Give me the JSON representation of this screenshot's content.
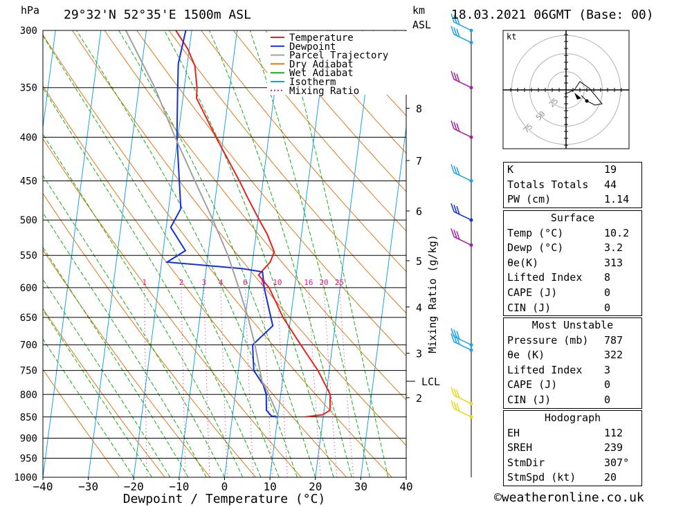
{
  "header": {
    "pressure_unit": "hPa",
    "location": "29°32'N  52°35'E  1500m  ASL",
    "height_unit_line1": "km",
    "height_unit_line2": "ASL",
    "datetime": "18.03.2021  06GMT  (Base: 00)"
  },
  "chart_data": {
    "type": "line",
    "title": "",
    "xlabel": "Dewpoint / Temperature (°C)",
    "ylabel": "hPa",
    "y_scale": "log",
    "xlim": [
      -40,
      40
    ],
    "ylim": [
      1000,
      300
    ],
    "x_ticks": [
      "−40",
      "−30",
      "−20",
      "−10",
      "0",
      "10",
      "20",
      "30",
      "40"
    ],
    "x_tick_values": [
      -40,
      -30,
      -20,
      -10,
      0,
      10,
      20,
      30,
      40
    ],
    "pressure_levels": [
      300,
      350,
      400,
      450,
      500,
      550,
      600,
      650,
      700,
      750,
      800,
      850,
      900,
      950,
      1000
    ],
    "height_ticks": [
      {
        "km": "8",
        "p": 370
      },
      {
        "km": "7",
        "p": 426
      },
      {
        "km": "6",
        "p": 488
      },
      {
        "km": "5",
        "p": 558
      },
      {
        "km": "4",
        "p": 632
      },
      {
        "km": "3",
        "p": 716
      },
      {
        "km": "2",
        "p": 807
      }
    ],
    "lcl": {
      "label": "LCL",
      "p": 772
    },
    "mixing_ratio": {
      "axis_label": "Mixing Ratio  (g/kg)",
      "labels": [
        "1",
        "2",
        "3",
        "4",
        "6",
        "8",
        "10",
        "16",
        "20",
        "25"
      ],
      "values": [
        1,
        2,
        3,
        4,
        6,
        8,
        10,
        16,
        20,
        25
      ],
      "label_p": 600
    },
    "legend": {
      "placement": "top-center",
      "entries": [
        {
          "name": "Temperature",
          "color": "#e8201e",
          "style": "solid"
        },
        {
          "name": "Dewpoint",
          "color": "#1030e0",
          "style": "solid"
        },
        {
          "name": "Parcel Trajectory",
          "color": "#a0a0a0",
          "style": "solid"
        },
        {
          "name": "Dry Adiabat",
          "color": "#e07818",
          "style": "solid"
        },
        {
          "name": "Wet Adiabat",
          "color": "#10b010",
          "style": "solid"
        },
        {
          "name": "Isotherm",
          "color": "#18a0e8",
          "style": "solid"
        },
        {
          "name": "Mixing Ratio",
          "color": "#e01880",
          "style": "dotted"
        }
      ]
    },
    "series": [
      {
        "name": "Temperature",
        "color": "#e8201e",
        "points": [
          [
            850,
            16.1
          ],
          [
            845,
            19.8
          ],
          [
            835,
            21.3
          ],
          [
            800,
            20.9
          ],
          [
            750,
            17.5
          ],
          [
            700,
            13.0
          ],
          [
            650,
            8.3
          ],
          [
            600,
            4.4
          ],
          [
            580,
            1.7
          ],
          [
            560,
            3.9
          ],
          [
            545,
            4.5
          ],
          [
            520,
            2.5
          ],
          [
            500,
            0.3
          ],
          [
            470,
            -3.0
          ],
          [
            450,
            -5.2
          ],
          [
            400,
            -11.6
          ],
          [
            360,
            -17.0
          ],
          [
            350,
            -17.2
          ],
          [
            330,
            -18.3
          ],
          [
            315,
            -20.4
          ],
          [
            300,
            -23.5
          ]
        ]
      },
      {
        "name": "Dewpoint",
        "color": "#1030e0",
        "points": [
          [
            850,
            10.0
          ],
          [
            848,
            8.6
          ],
          [
            835,
            7.3
          ],
          [
            800,
            6.8
          ],
          [
            780,
            5.9
          ],
          [
            750,
            3.4
          ],
          [
            720,
            2.8
          ],
          [
            700,
            2.4
          ],
          [
            665,
            6.3
          ],
          [
            600,
            3.3
          ],
          [
            575,
            2.5
          ],
          [
            570,
            -2.0
          ],
          [
            560,
            -18.8
          ],
          [
            543,
            -15.1
          ],
          [
            510,
            -19.0
          ],
          [
            485,
            -17.3
          ],
          [
            400,
            -20.2
          ],
          [
            352,
            -21.4
          ],
          [
            328,
            -22.0
          ],
          [
            300,
            -21.3
          ]
        ]
      },
      {
        "name": "Parcel Trajectory",
        "color": "#a0a0a0",
        "points": [
          [
            850,
            10.2
          ],
          [
            800,
            7.4
          ],
          [
            772,
            5.5
          ],
          [
            700,
            2.9
          ],
          [
            650,
            0.6
          ],
          [
            600,
            -2.3
          ],
          [
            550,
            -5.6
          ],
          [
            500,
            -9.9
          ],
          [
            450,
            -15.0
          ],
          [
            400,
            -20.6
          ],
          [
            350,
            -26.5
          ],
          [
            300,
            -34.5
          ]
        ]
      }
    ],
    "winds": [
      {
        "p": 300,
        "color": "#18a0e8"
      },
      {
        "p": 310,
        "color": "#18a0e8"
      },
      {
        "p": 350,
        "color": "#a020a0"
      },
      {
        "p": 400,
        "color": "#a020a0"
      },
      {
        "p": 450,
        "color": "#18a0e8"
      },
      {
        "p": 500,
        "color": "#1030e0"
      },
      {
        "p": 535,
        "color": "#a020a0"
      },
      {
        "p": 700,
        "color": "#18a0e8"
      },
      {
        "p": 710,
        "color": "#18a0e8"
      },
      {
        "p": 820,
        "color": "#e8d818"
      },
      {
        "p": 850,
        "color": "#e8d818"
      }
    ]
  },
  "hodograph": {
    "unit_label": "kt",
    "ring_labels": [
      "25",
      "50",
      "75"
    ]
  },
  "indices": {
    "top": [
      {
        "label": "K",
        "value": "19"
      },
      {
        "label": "Totals Totals",
        "value": "44"
      },
      {
        "label": "PW (cm)",
        "value": "1.14"
      }
    ],
    "surface": {
      "title": "Surface",
      "rows": [
        {
          "label": "Temp (°C)",
          "value": "10.2"
        },
        {
          "label": "Dewp (°C)",
          "value": "3.2"
        },
        {
          "label": "θe(K)",
          "value": "313"
        },
        {
          "label": "Lifted Index",
          "value": "8"
        },
        {
          "label": "CAPE (J)",
          "value": "0"
        },
        {
          "label": "CIN (J)",
          "value": "0"
        }
      ]
    },
    "most_unstable": {
      "title": "Most Unstable",
      "rows": [
        {
          "label": "Pressure (mb)",
          "value": "787"
        },
        {
          "label": "θe (K)",
          "value": "322"
        },
        {
          "label": "Lifted Index",
          "value": "3"
        },
        {
          "label": "CAPE (J)",
          "value": "0"
        },
        {
          "label": "CIN (J)",
          "value": "0"
        }
      ]
    },
    "hodograph_box": {
      "title": "Hodograph",
      "rows": [
        {
          "label": "EH",
          "value": "112"
        },
        {
          "label": "SREH",
          "value": "239"
        },
        {
          "label": "StmDir",
          "value": "307°"
        },
        {
          "label": "StmSpd (kt)",
          "value": "20"
        }
      ]
    }
  },
  "footer": "©weatheronline.co.uk"
}
